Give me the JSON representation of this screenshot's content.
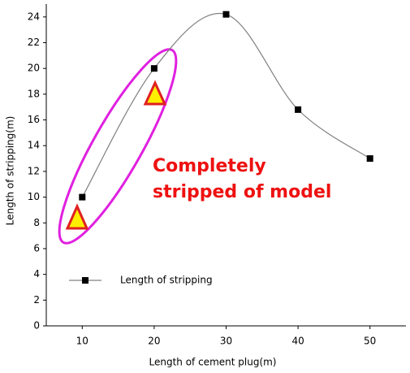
{
  "chart_data": {
    "type": "line",
    "x_label": "Length of cement plug(m)",
    "y_label": "Length of stripping(m)",
    "x": [
      10,
      20,
      30,
      40,
      50
    ],
    "series": [
      {
        "name": "Length of stripping",
        "color": "#000000",
        "line_color": "#808080",
        "values": [
          10,
          20,
          24.2,
          16.8,
          13
        ]
      }
    ],
    "xlim": [
      5,
      55
    ],
    "xticks": [
      10,
      20,
      30,
      40,
      50
    ],
    "ylim": [
      0,
      25
    ],
    "yticks": [
      0,
      2,
      4,
      6,
      8,
      10,
      12,
      14,
      16,
      18,
      20,
      22,
      24
    ],
    "legend": "lower left",
    "annotation": [
      "Completely",
      "stripped of model"
    ]
  }
}
